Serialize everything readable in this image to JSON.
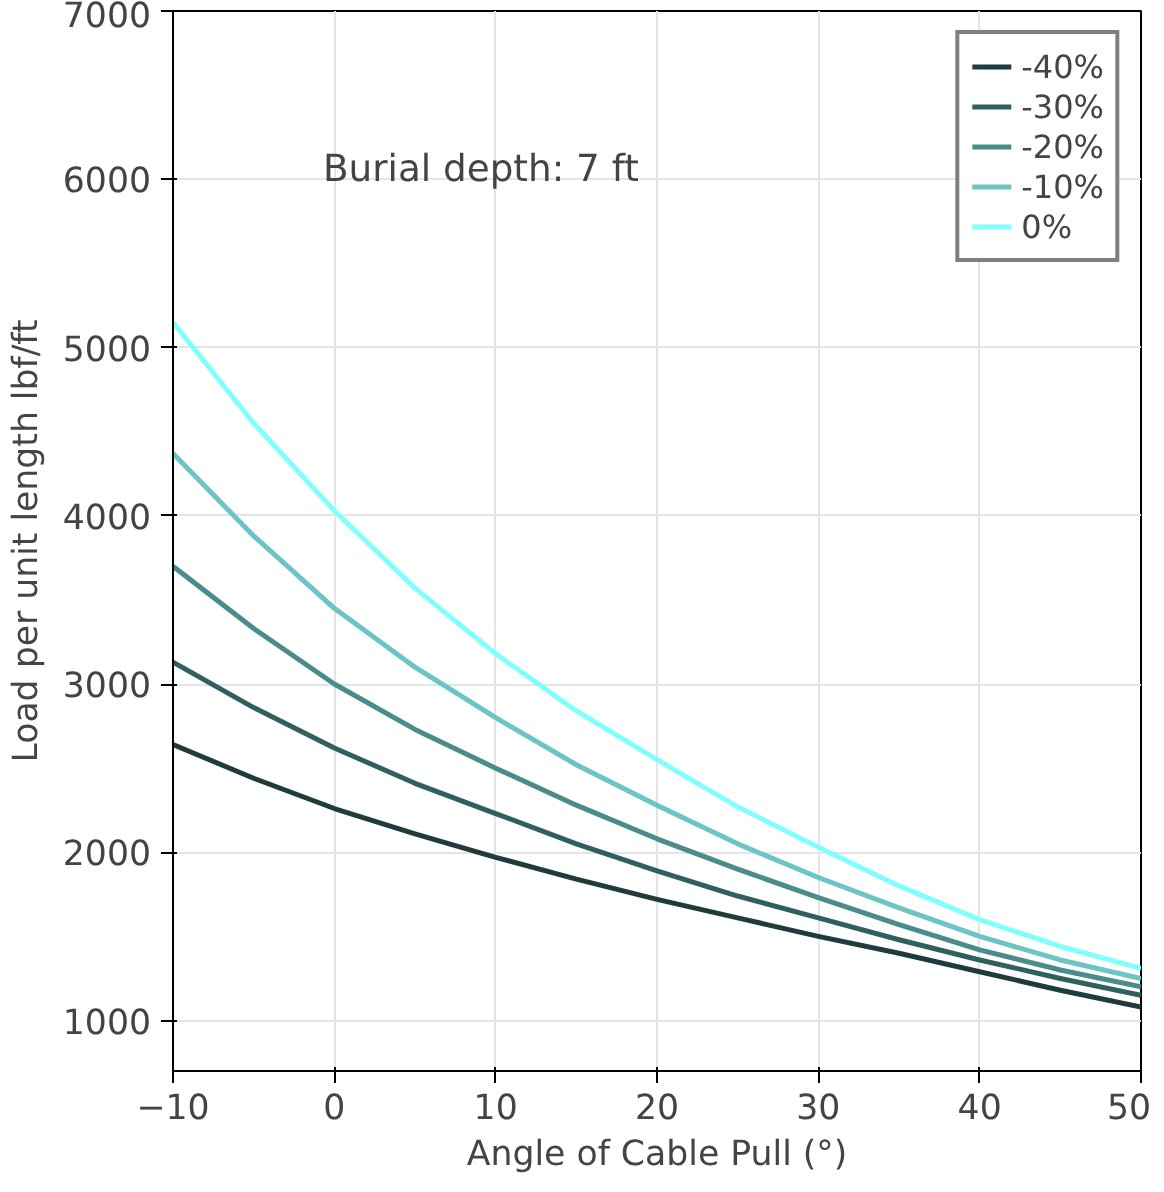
{
  "chart_data": {
    "type": "line",
    "xlabel": "Angle of Cable Pull (°)",
    "ylabel": "Load per unit length lbf/ft",
    "annotations": [
      "Burial depth: 7 ft"
    ],
    "x": [
      -10,
      -5,
      0,
      5,
      10,
      15,
      20,
      25,
      30,
      35,
      40,
      45,
      50
    ],
    "series": [
      {
        "name": "-40%",
        "color": "#1f3b3b",
        "values": [
          2640,
          2440,
          2260,
          2110,
          1970,
          1840,
          1720,
          1610,
          1500,
          1400,
          1290,
          1180,
          1080
        ]
      },
      {
        "name": "-30%",
        "color": "#2f5f5f",
        "values": [
          3130,
          2860,
          2620,
          2410,
          2230,
          2050,
          1890,
          1740,
          1610,
          1480,
          1360,
          1250,
          1150
        ]
      },
      {
        "name": "-20%",
        "color": "#4a8c8c",
        "values": [
          3700,
          3330,
          3000,
          2730,
          2500,
          2280,
          2080,
          1900,
          1730,
          1570,
          1420,
          1300,
          1200
        ]
      },
      {
        "name": "-10%",
        "color": "#6cc4c4",
        "values": [
          4370,
          3880,
          3450,
          3100,
          2800,
          2520,
          2280,
          2050,
          1850,
          1670,
          1500,
          1360,
          1250
        ]
      },
      {
        "name": "0%",
        "color": "#80ffff",
        "values": [
          5150,
          4550,
          4030,
          3570,
          3180,
          2840,
          2550,
          2270,
          2030,
          1800,
          1600,
          1440,
          1310
        ]
      }
    ],
    "xlim": [
      -10,
      50
    ],
    "ylim": [
      700,
      7000
    ],
    "xticks": [
      -10,
      0,
      10,
      20,
      30,
      40,
      50
    ],
    "yticks": [
      1000,
      2000,
      3000,
      4000,
      5000,
      6000,
      7000
    ],
    "grid": true,
    "legend": "top right",
    "marker": "none",
    "line_style": "solid"
  }
}
